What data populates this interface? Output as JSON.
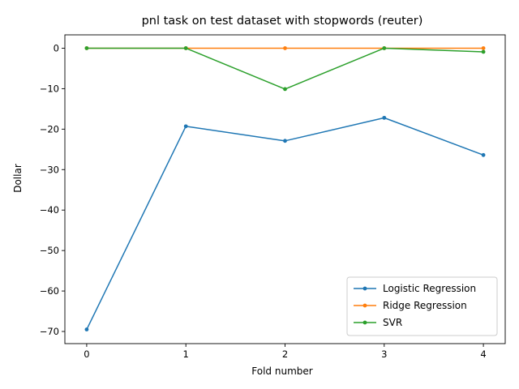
{
  "chart_data": {
    "type": "line",
    "title": "pnl task on test dataset with stopwords (reuter)",
    "xlabel": "Fold number",
    "ylabel": "Dollar",
    "x": [
      0,
      1,
      2,
      3,
      4
    ],
    "xticks": [
      "0",
      "1",
      "2",
      "3",
      "4"
    ],
    "yticks": [
      0,
      -10,
      -20,
      -30,
      -40,
      -50,
      -60,
      -70
    ],
    "ytick_labels": [
      "0",
      "−10",
      "−20",
      "−30",
      "−40",
      "−50",
      "−60",
      "−70"
    ],
    "xlim": [
      -0.22,
      4.22
    ],
    "ylim": [
      -73,
      3.3
    ],
    "grid": false,
    "legend_position": "lower-right",
    "series": [
      {
        "name": "Logistic Regression",
        "color": "#1f77b4",
        "values": [
          -69.5,
          -19.3,
          -22.9,
          -17.2,
          -26.4
        ]
      },
      {
        "name": "Ridge Regression",
        "color": "#ff7f0e",
        "values": [
          0,
          0,
          0,
          0,
          0
        ]
      },
      {
        "name": "SVR",
        "color": "#2ca02c",
        "values": [
          0,
          0,
          -10.1,
          0,
          -0.9
        ]
      }
    ]
  }
}
